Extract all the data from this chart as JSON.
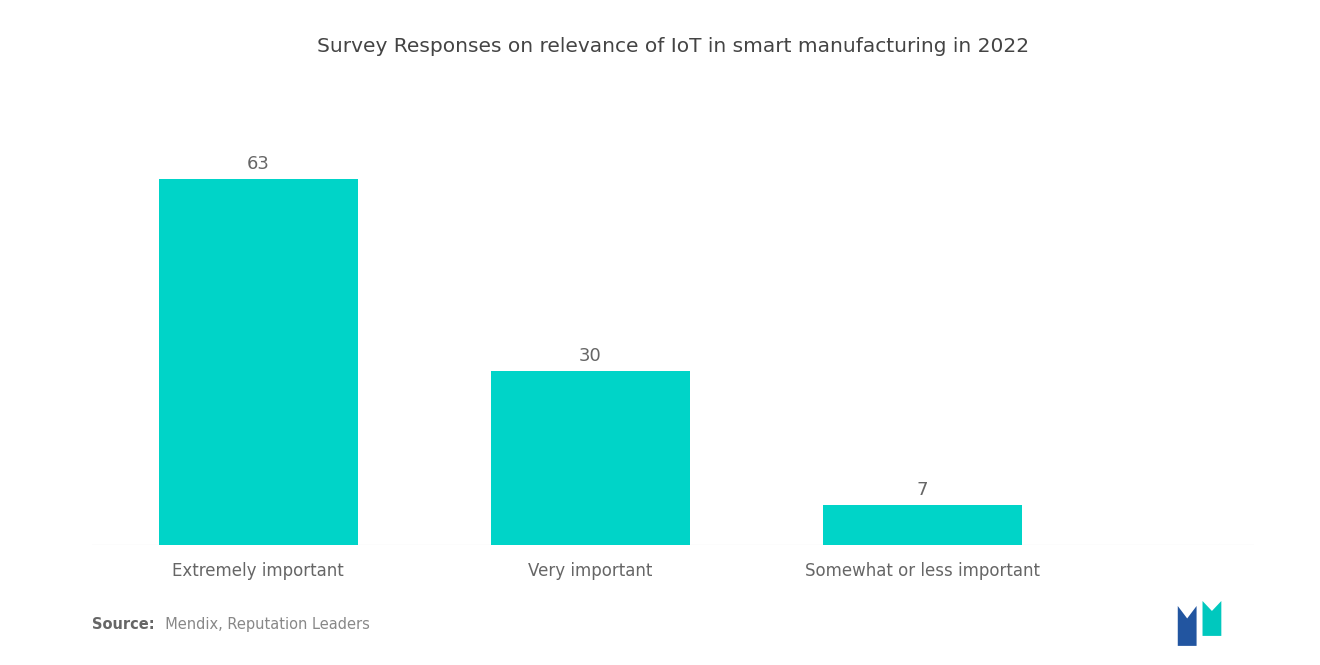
{
  "title": "Survey Responses on relevance of IoT in smart manufacturing in 2022",
  "categories": [
    "Extremely important",
    "Very important",
    "Somewhat or less important"
  ],
  "values": [
    63,
    30,
    7
  ],
  "bar_color": "#00D4C8",
  "background_color": "#ffffff",
  "title_fontsize": 14.5,
  "label_fontsize": 12,
  "value_fontsize": 13,
  "source_bold": "Source:",
  "source_rest": "  Mendix, Reputation Leaders",
  "ylim": [
    0,
    80
  ],
  "x_positions": [
    1,
    3,
    5
  ],
  "bar_width": 1.2,
  "xlim": [
    0,
    7
  ]
}
